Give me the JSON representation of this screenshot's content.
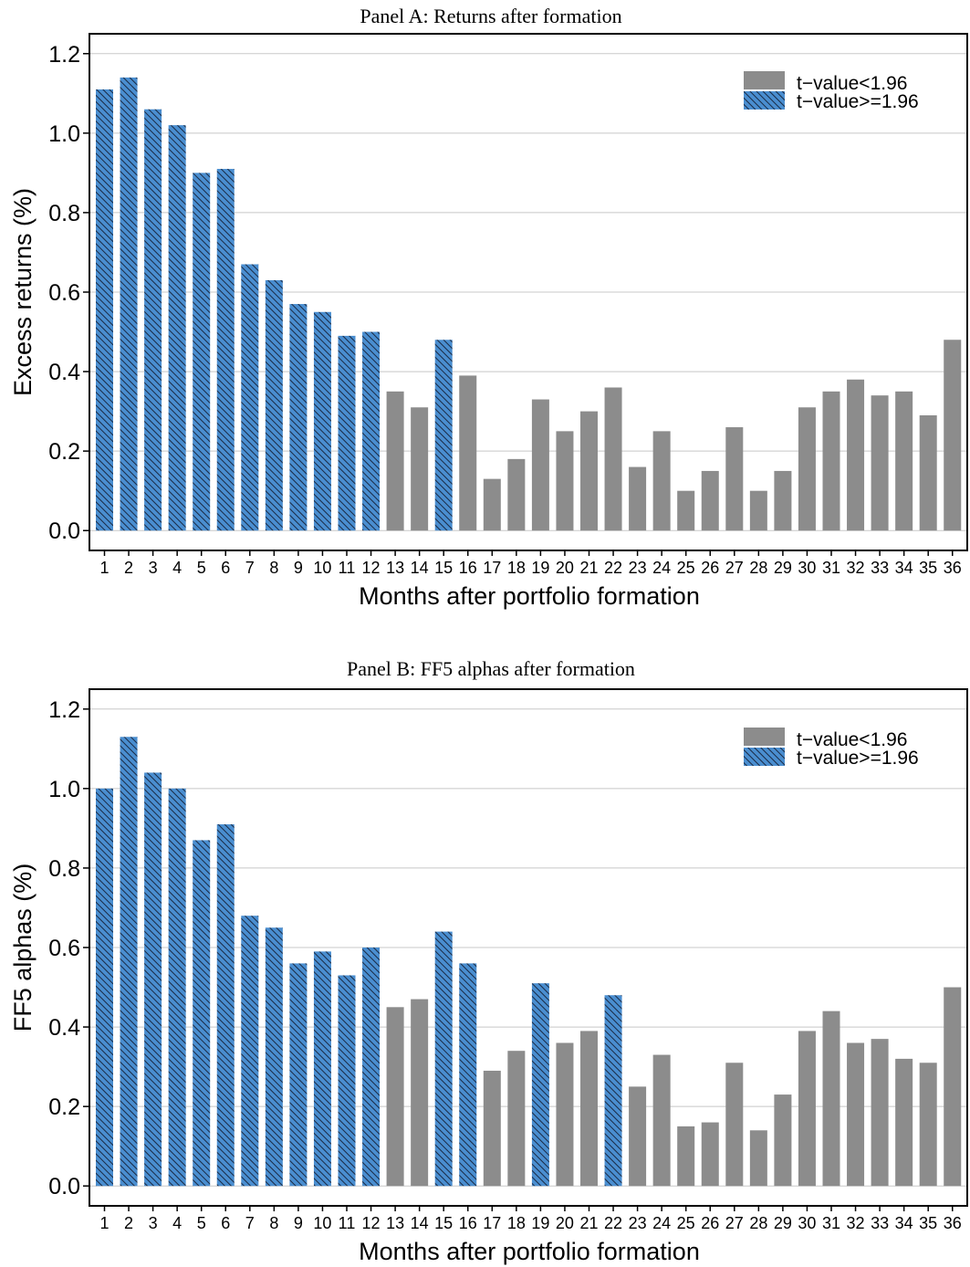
{
  "chart_data": [
    {
      "type": "bar",
      "title": "Panel A: Returns after formation",
      "xlabel": "Months after portfolio formation",
      "ylabel": "Excess returns (%)",
      "ylim": [
        -0.05,
        1.25
      ],
      "yticks": [
        "0.0",
        "0.2",
        "0.4",
        "0.6",
        "0.8",
        "1.0",
        "1.2"
      ],
      "grid": true,
      "legend_position": "top-right",
      "legend": [
        {
          "label": "t−value<1.96",
          "style": "gray"
        },
        {
          "label": "t−value>=1.96",
          "style": "hatched-blue"
        }
      ],
      "categories": [
        "1",
        "2",
        "3",
        "4",
        "5",
        "6",
        "7",
        "8",
        "9",
        "10",
        "11",
        "12",
        "13",
        "14",
        "15",
        "16",
        "17",
        "18",
        "19",
        "20",
        "21",
        "22",
        "23",
        "24",
        "25",
        "26",
        "27",
        "28",
        "29",
        "30",
        "31",
        "32",
        "33",
        "34",
        "35",
        "36"
      ],
      "values": [
        1.11,
        1.14,
        1.06,
        1.02,
        0.9,
        0.91,
        0.67,
        0.63,
        0.57,
        0.55,
        0.49,
        0.5,
        0.35,
        0.31,
        0.48,
        0.39,
        0.13,
        0.18,
        0.33,
        0.25,
        0.3,
        0.36,
        0.16,
        0.25,
        0.1,
        0.15,
        0.26,
        0.1,
        0.15,
        0.31,
        0.35,
        0.38,
        0.34,
        0.35,
        0.29,
        0.48
      ],
      "significant": [
        true,
        true,
        true,
        true,
        true,
        true,
        true,
        true,
        true,
        true,
        true,
        true,
        false,
        false,
        true,
        false,
        false,
        false,
        false,
        false,
        false,
        false,
        false,
        false,
        false,
        false,
        false,
        false,
        false,
        false,
        false,
        false,
        false,
        false,
        false,
        false
      ]
    },
    {
      "type": "bar",
      "title": "Panel B: FF5 alphas after formation",
      "xlabel": "Months after portfolio formation",
      "ylabel": "FF5 alphas (%)",
      "ylim": [
        -0.05,
        1.25
      ],
      "yticks": [
        "0.0",
        "0.2",
        "0.4",
        "0.6",
        "0.8",
        "1.0",
        "1.2"
      ],
      "grid": true,
      "legend_position": "top-right",
      "legend": [
        {
          "label": "t−value<1.96",
          "style": "gray"
        },
        {
          "label": "t−value>=1.96",
          "style": "hatched-blue"
        }
      ],
      "categories": [
        "1",
        "2",
        "3",
        "4",
        "5",
        "6",
        "7",
        "8",
        "9",
        "10",
        "11",
        "12",
        "13",
        "14",
        "15",
        "16",
        "17",
        "18",
        "19",
        "20",
        "21",
        "22",
        "23",
        "24",
        "25",
        "26",
        "27",
        "28",
        "29",
        "30",
        "31",
        "32",
        "33",
        "34",
        "35",
        "36"
      ],
      "values": [
        1.0,
        1.13,
        1.04,
        1.0,
        0.87,
        0.91,
        0.68,
        0.65,
        0.56,
        0.59,
        0.53,
        0.6,
        0.45,
        0.47,
        0.64,
        0.56,
        0.29,
        0.34,
        0.51,
        0.36,
        0.39,
        0.48,
        0.25,
        0.33,
        0.15,
        0.16,
        0.31,
        0.14,
        0.23,
        0.39,
        0.44,
        0.36,
        0.37,
        0.32,
        0.31,
        0.5
      ],
      "significant": [
        true,
        true,
        true,
        true,
        true,
        true,
        true,
        true,
        true,
        true,
        true,
        true,
        false,
        false,
        true,
        true,
        false,
        false,
        true,
        false,
        false,
        true,
        false,
        false,
        false,
        false,
        false,
        false,
        false,
        false,
        false,
        false,
        false,
        false,
        false,
        false
      ]
    }
  ],
  "colors": {
    "insignificant": "#8c8c8c",
    "significant_fill": "#4a8ed0",
    "significant_hatch": "#1a2a44",
    "grid": "#c8c8c8"
  }
}
